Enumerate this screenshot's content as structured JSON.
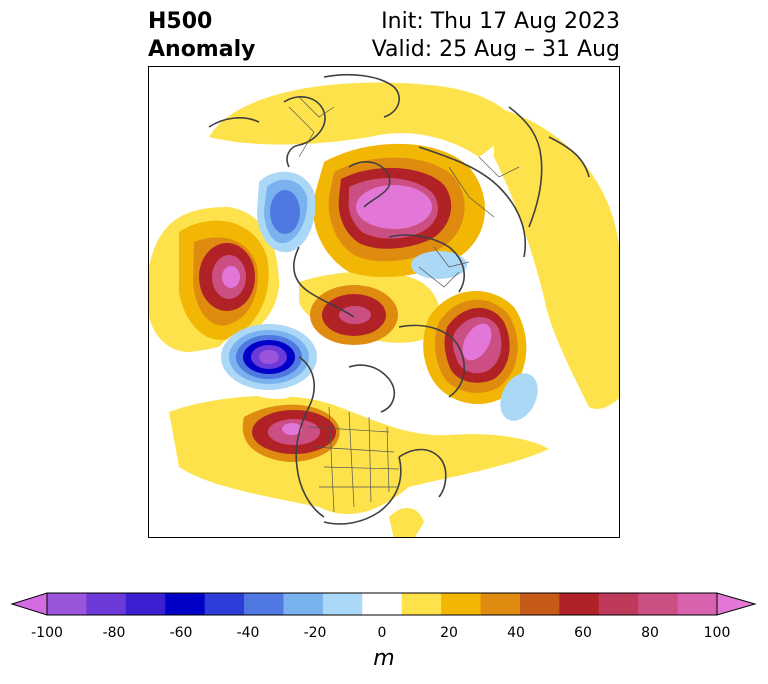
{
  "header": {
    "title_line1": "H500",
    "title_line2": "Anomaly",
    "init": "Init: Thu 17 Aug 2023",
    "valid": "Valid: 25 Aug – 31 Aug"
  },
  "colorbar": {
    "unit_label": "m",
    "tick_labels": [
      "-100",
      "-80",
      "-60",
      "-40",
      "-20",
      "0",
      "20",
      "40",
      "60",
      "80",
      "100"
    ],
    "levels": [
      -100,
      -90,
      -80,
      -70,
      -60,
      -50,
      -40,
      -30,
      -20,
      -10,
      10,
      20,
      30,
      40,
      50,
      60,
      70,
      80,
      90,
      100
    ],
    "colors": [
      "#d46be0",
      "#9b54dc",
      "#6b3ad8",
      "#3b1fd2",
      "#0000c8",
      "#2b3fd8",
      "#4f79e0",
      "#7ab2ef",
      "#aad8f6",
      "#ffffff",
      "#fde24b",
      "#f2b705",
      "#de8b10",
      "#c65a18",
      "#b02225",
      "#bf3a5a",
      "#cc4f84",
      "#d862ae",
      "#e377d8"
    ]
  },
  "map": {
    "projection": "polar-stereographic",
    "features": [
      "coastlines",
      "country-borders",
      "us-state-borders"
    ]
  }
}
